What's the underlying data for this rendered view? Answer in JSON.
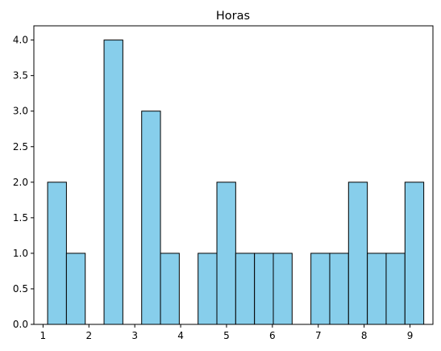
{
  "chart_data": {
    "type": "bar",
    "title": "Horas",
    "xlabel": "",
    "ylabel": "",
    "xlim": [
      0.8,
      9.5
    ],
    "ylim": [
      0,
      4.2
    ],
    "x_ticks": [
      1,
      2,
      3,
      4,
      5,
      6,
      7,
      8,
      9
    ],
    "x_tick_labels": [
      "1",
      "2",
      "3",
      "4",
      "5",
      "6",
      "7",
      "8",
      "9"
    ],
    "y_ticks": [
      0,
      0.5,
      1,
      1.5,
      2,
      2.5,
      3,
      3.5,
      4
    ],
    "y_tick_labels": [
      "0.0",
      "0.5",
      "1.0",
      "1.5",
      "2.0",
      "2.5",
      "3.0",
      "3.5",
      "4.0"
    ],
    "bars": [
      {
        "x0": 1.1,
        "x1": 1.51,
        "value": 2
      },
      {
        "x0": 1.51,
        "x1": 1.92,
        "value": 1
      },
      {
        "x0": 2.33,
        "x1": 2.74,
        "value": 4
      },
      {
        "x0": 3.15,
        "x1": 3.56,
        "value": 3
      },
      {
        "x0": 3.56,
        "x1": 3.97,
        "value": 1
      },
      {
        "x0": 4.38,
        "x1": 4.79,
        "value": 1
      },
      {
        "x0": 4.79,
        "x1": 5.2,
        "value": 2
      },
      {
        "x0": 5.2,
        "x1": 5.61,
        "value": 1
      },
      {
        "x0": 5.61,
        "x1": 6.02,
        "value": 1
      },
      {
        "x0": 6.02,
        "x1": 6.43,
        "value": 1
      },
      {
        "x0": 6.84,
        "x1": 7.25,
        "value": 1
      },
      {
        "x0": 7.25,
        "x1": 7.66,
        "value": 1
      },
      {
        "x0": 7.66,
        "x1": 8.07,
        "value": 2
      },
      {
        "x0": 8.07,
        "x1": 8.48,
        "value": 1
      },
      {
        "x0": 8.48,
        "x1": 8.89,
        "value": 1
      },
      {
        "x0": 8.89,
        "x1": 9.3,
        "value": 2
      }
    ],
    "bar_color": "#87ceeb",
    "edge_color": "#000000",
    "grid": false
  }
}
